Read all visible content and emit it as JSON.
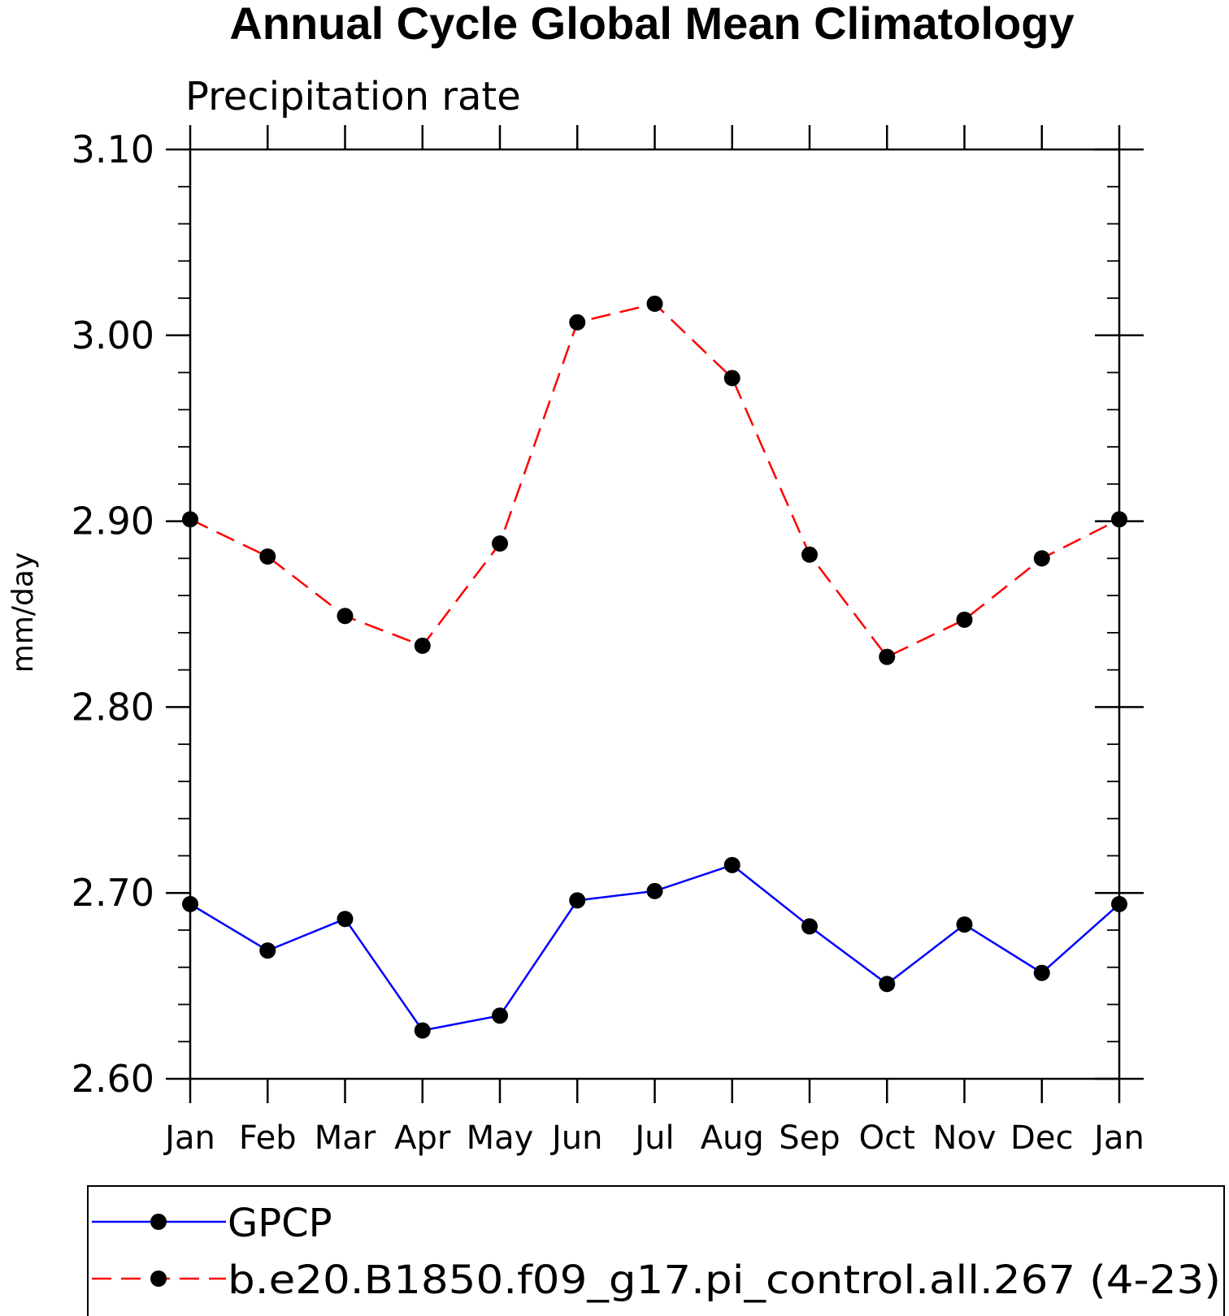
{
  "chart_data": {
    "type": "line",
    "title": "Annual Cycle Global Mean Climatology",
    "subtitle": "Precipitation rate",
    "xlabel": "",
    "ylabel": "mm/day",
    "ylim": [
      2.6,
      3.1
    ],
    "y_major_ticks": [
      2.6,
      2.7,
      2.8,
      2.9,
      3.0,
      3.1
    ],
    "y_tick_labels": [
      "2.60",
      "2.70",
      "2.80",
      "2.90",
      "3.00",
      "3.10"
    ],
    "y_minor_step": 0.02,
    "categories": [
      "Jan",
      "Feb",
      "Mar",
      "Apr",
      "May",
      "Jun",
      "Jul",
      "Aug",
      "Sep",
      "Oct",
      "Nov",
      "Dec",
      "Jan"
    ],
    "grid": false,
    "legend_position": "bottom",
    "series": [
      {
        "name": "GPCP",
        "color": "#0000ff",
        "dash": "solid",
        "marker": "filled-circle",
        "values": [
          2.694,
          2.669,
          2.686,
          2.626,
          2.634,
          2.696,
          2.701,
          2.715,
          2.682,
          2.651,
          2.683,
          2.657,
          2.694
        ]
      },
      {
        "name": "b.e20.B1850.f09_g17.pi_control.all.267 (4-23)",
        "color": "#ff0000",
        "dash": "dashed",
        "marker": "filled-circle",
        "values": [
          2.901,
          2.881,
          2.849,
          2.833,
          2.888,
          3.007,
          3.017,
          2.977,
          2.882,
          2.827,
          2.847,
          2.88,
          2.901
        ]
      }
    ]
  }
}
